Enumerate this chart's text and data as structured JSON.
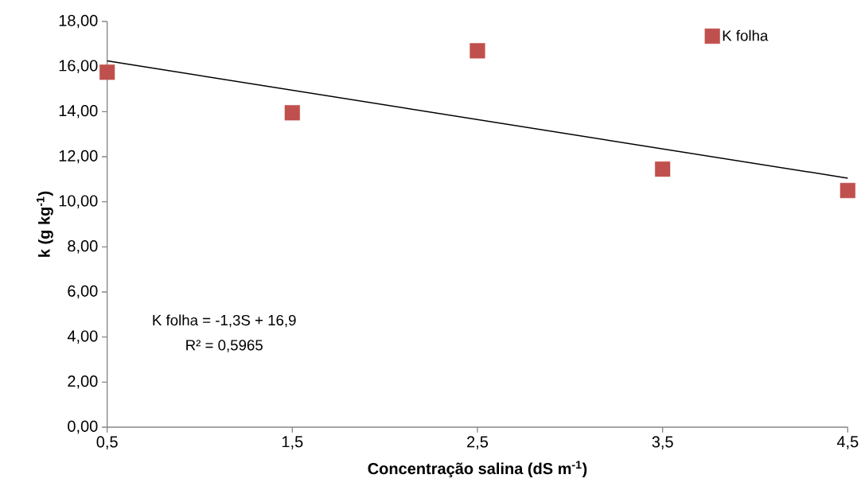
{
  "chart_data": {
    "type": "scatter",
    "xlabel": "Concentração salina (dS m$^{-1}$)",
    "ylabel": "k (g kg$^{-1}$)",
    "x": [
      0.5,
      1.5,
      2.5,
      3.5,
      4.5
    ],
    "series": [
      {
        "name": "K folha",
        "color": "#c0504d",
        "values": [
          15.75,
          13.95,
          16.7,
          11.45,
          10.5
        ]
      },
      {
        "type": "line",
        "color": "#000000",
        "marker": "none",
        "x": [
          0.5,
          4.5
        ],
        "values": [
          16.25,
          11.05
        ]
      }
    ],
    "xlim": [
      0.5,
      4.5
    ],
    "ylim": [
      0,
      18
    ],
    "xticks": [
      {
        "value": 0.5,
        "label": "0,5"
      },
      {
        "value": 1.5,
        "label": "1,5"
      },
      {
        "value": 2.5,
        "label": "2,5"
      },
      {
        "value": 3.5,
        "label": "3,5"
      },
      {
        "value": 4.5,
        "label": "4,5"
      }
    ],
    "yticks": [
      {
        "value": 0,
        "label": "0,00"
      },
      {
        "value": 2,
        "label": "2,00"
      },
      {
        "value": 4,
        "label": "4,00"
      },
      {
        "value": 6,
        "label": "6,00"
      },
      {
        "value": 8,
        "label": "8,00"
      },
      {
        "value": 10,
        "label": "10,00"
      },
      {
        "value": 12,
        "label": "12,00"
      },
      {
        "value": 14,
        "label": "14,00"
      },
      {
        "value": 16,
        "label": "16,00"
      },
      {
        "value": 18,
        "label": "18,00"
      }
    ],
    "annotations": [
      "K folha = -1,3S + 16,9",
      "R² = 0,5965"
    ],
    "legend": "top right",
    "marker": "square",
    "grid": false
  }
}
